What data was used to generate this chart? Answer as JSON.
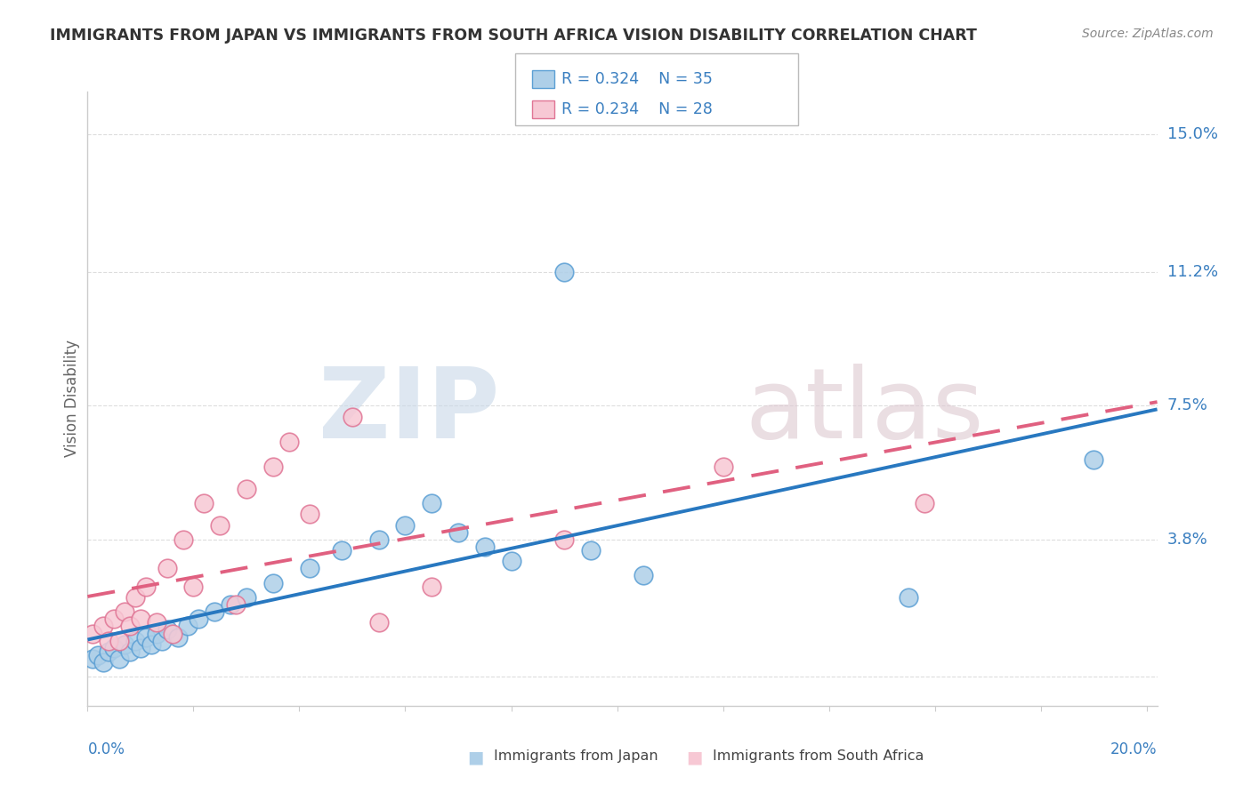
{
  "title": "IMMIGRANTS FROM JAPAN VS IMMIGRANTS FROM SOUTH AFRICA VISION DISABILITY CORRELATION CHART",
  "source": "Source: ZipAtlas.com",
  "ylabel": "Vision Disability",
  "yticks": [
    0.0,
    0.038,
    0.075,
    0.112,
    0.15
  ],
  "ytick_labels": [
    "",
    "3.8%",
    "7.5%",
    "11.2%",
    "15.0%"
  ],
  "xlim": [
    0.0,
    0.202
  ],
  "ylim": [
    -0.008,
    0.162
  ],
  "japan_color_edge": "#5b9fd4",
  "japan_color_fill": "#aecfe8",
  "sa_color_edge": "#e07595",
  "sa_color_fill": "#f7c8d4",
  "trend_japan_color": "#2878c0",
  "trend_sa_color": "#e06080",
  "legend_R_japan": "R = 0.324",
  "legend_N_japan": "N = 35",
  "legend_R_sa": "R = 0.234",
  "legend_N_sa": "N = 28",
  "japan_x": [
    0.001,
    0.002,
    0.003,
    0.004,
    0.005,
    0.006,
    0.007,
    0.008,
    0.009,
    0.01,
    0.011,
    0.012,
    0.013,
    0.014,
    0.015,
    0.017,
    0.019,
    0.021,
    0.024,
    0.027,
    0.03,
    0.035,
    0.042,
    0.048,
    0.055,
    0.06,
    0.065,
    0.07,
    0.075,
    0.08,
    0.09,
    0.095,
    0.105,
    0.155,
    0.19
  ],
  "japan_y": [
    0.005,
    0.006,
    0.004,
    0.007,
    0.008,
    0.005,
    0.009,
    0.007,
    0.01,
    0.008,
    0.011,
    0.009,
    0.012,
    0.01,
    0.013,
    0.011,
    0.014,
    0.016,
    0.018,
    0.02,
    0.022,
    0.026,
    0.03,
    0.035,
    0.038,
    0.042,
    0.048,
    0.04,
    0.036,
    0.032,
    0.112,
    0.035,
    0.028,
    0.022,
    0.06
  ],
  "sa_x": [
    0.001,
    0.003,
    0.004,
    0.005,
    0.006,
    0.007,
    0.008,
    0.009,
    0.01,
    0.011,
    0.013,
    0.015,
    0.016,
    0.018,
    0.02,
    0.022,
    0.025,
    0.028,
    0.03,
    0.035,
    0.038,
    0.042,
    0.05,
    0.055,
    0.065,
    0.09,
    0.12,
    0.158
  ],
  "sa_y": [
    0.012,
    0.014,
    0.01,
    0.016,
    0.01,
    0.018,
    0.014,
    0.022,
    0.016,
    0.025,
    0.015,
    0.03,
    0.012,
    0.038,
    0.025,
    0.048,
    0.042,
    0.02,
    0.052,
    0.058,
    0.065,
    0.045,
    0.072,
    0.015,
    0.025,
    0.038,
    0.058,
    0.048
  ],
  "bg_color": "#ffffff",
  "grid_color": "#dddddd",
  "spine_color": "#cccccc",
  "title_color": "#333333",
  "source_color": "#888888",
  "axis_label_color": "#3a7fc0",
  "ylabel_color": "#666666"
}
